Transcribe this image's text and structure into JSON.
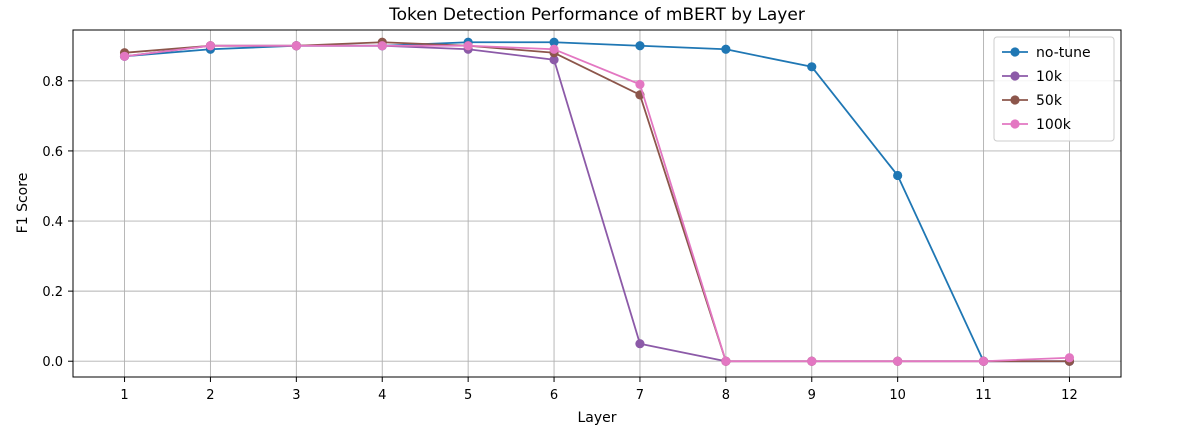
{
  "chart_data": {
    "type": "line",
    "title": "Token Detection Performance of mBERT by Layer",
    "xlabel": "Layer",
    "ylabel": "F1 Score",
    "x": [
      1,
      2,
      3,
      4,
      5,
      6,
      7,
      8,
      9,
      10,
      11,
      12
    ],
    "xlim": [
      0.4,
      12.6
    ],
    "ylim": [
      -0.045,
      0.945
    ],
    "xticks": [
      1,
      2,
      3,
      4,
      5,
      6,
      7,
      8,
      9,
      10,
      11,
      12
    ],
    "yticks": [
      0.0,
      0.2,
      0.4,
      0.6,
      0.8
    ],
    "ytick_labels": [
      "0.0",
      "0.2",
      "0.4",
      "0.6",
      "0.8"
    ],
    "grid": true,
    "legend_position": "top-right",
    "series": [
      {
        "name": "no-tune",
        "color": "#1f77b4",
        "values": [
          0.87,
          0.89,
          0.9,
          0.9,
          0.91,
          0.91,
          0.9,
          0.89,
          0.84,
          0.53,
          0.0,
          0.0
        ]
      },
      {
        "name": "10k",
        "color": "#8c5aa8",
        "values": [
          0.87,
          0.9,
          0.9,
          0.9,
          0.89,
          0.86,
          0.05,
          0.0,
          0.0,
          0.0,
          0.0,
          0.0
        ]
      },
      {
        "name": "50k",
        "color": "#8c564b",
        "values": [
          0.88,
          0.9,
          0.9,
          0.91,
          0.9,
          0.88,
          0.76,
          0.0,
          0.0,
          0.0,
          0.0,
          0.0
        ]
      },
      {
        "name": "100k",
        "color": "#e377c2",
        "values": [
          0.87,
          0.9,
          0.9,
          0.9,
          0.9,
          0.89,
          0.79,
          0.0,
          0.0,
          0.0,
          0.0,
          0.01
        ]
      }
    ]
  }
}
